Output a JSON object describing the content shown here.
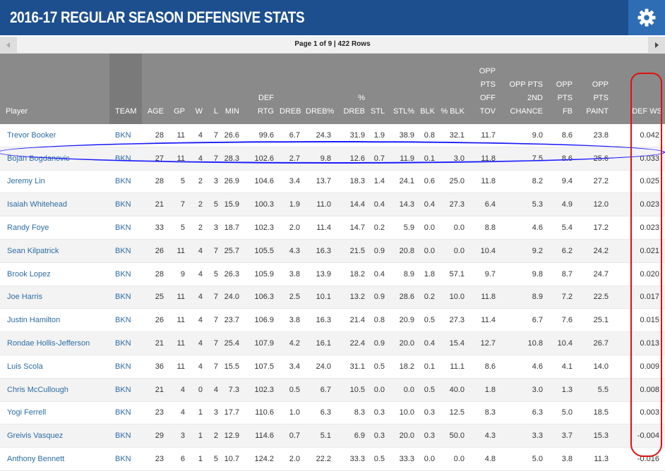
{
  "title": "2016-17 REGULAR SEASON DEFENSIVE STATS",
  "settings_icon": "gear-icon",
  "pager": {
    "info": "Page 1 of 9 | 422 Rows",
    "prev_icon": "triangle-left-icon",
    "next_icon": "triangle-right-icon"
  },
  "columns": [
    {
      "key": "player",
      "label": "Player"
    },
    {
      "key": "team",
      "label": "TEAM"
    },
    {
      "key": "age",
      "label": "AGE"
    },
    {
      "key": "gp",
      "label": "GP"
    },
    {
      "key": "w",
      "label": "W"
    },
    {
      "key": "l",
      "label": "L"
    },
    {
      "key": "min",
      "label": "MIN"
    },
    {
      "key": "def_rtg",
      "label": "DEF RTG"
    },
    {
      "key": "dreb",
      "label": "DREB"
    },
    {
      "key": "dreb_pct",
      "label": "DREB%"
    },
    {
      "key": "pct_dreb",
      "label": "% DREB"
    },
    {
      "key": "stl",
      "label": "STL"
    },
    {
      "key": "stl_pct",
      "label": "STL%"
    },
    {
      "key": "blk",
      "label": "BLK"
    },
    {
      "key": "pct_blk",
      "label": "% BLK"
    },
    {
      "key": "opp_pts_off_tov",
      "label": "OPP PTS OFF TOV"
    },
    {
      "key": "opp_pts_2nd_chance",
      "label": "OPP PTS 2ND CHANCE"
    },
    {
      "key": "opp_pts_fb",
      "label": "OPP PTS FB"
    },
    {
      "key": "opp_pts_paint",
      "label": "OPP PTS PAINT"
    },
    {
      "key": "def_ws",
      "label": "DEF WS"
    }
  ],
  "rows": [
    [
      "Trevor Booker",
      "BKN",
      "28",
      "11",
      "4",
      "7",
      "26.6",
      "99.6",
      "6.7",
      "24.3",
      "31.9",
      "1.9",
      "38.9",
      "0.8",
      "32.1",
      "11.7",
      "9.0",
      "8.6",
      "23.8",
      "0.042"
    ],
    [
      "Bojan Bogdanovic",
      "BKN",
      "27",
      "11",
      "4",
      "7",
      "28.3",
      "102.6",
      "2.7",
      "9.8",
      "12.6",
      "0.7",
      "11.9",
      "0.1",
      "3.0",
      "11.8",
      "7.5",
      "8.6",
      "25.6",
      "0.033"
    ],
    [
      "Jeremy Lin",
      "BKN",
      "28",
      "5",
      "2",
      "3",
      "26.9",
      "104.6",
      "3.4",
      "13.7",
      "18.3",
      "1.4",
      "24.1",
      "0.6",
      "25.0",
      "11.8",
      "8.2",
      "9.4",
      "27.2",
      "0.025"
    ],
    [
      "Isaiah Whitehead",
      "BKN",
      "21",
      "7",
      "2",
      "5",
      "15.9",
      "100.3",
      "1.9",
      "11.0",
      "14.4",
      "0.4",
      "14.3",
      "0.4",
      "27.3",
      "6.4",
      "5.3",
      "4.9",
      "12.0",
      "0.023"
    ],
    [
      "Randy Foye",
      "BKN",
      "33",
      "5",
      "2",
      "3",
      "18.7",
      "102.3",
      "2.0",
      "11.4",
      "14.7",
      "0.2",
      "5.9",
      "0.0",
      "0.0",
      "8.8",
      "4.6",
      "5.4",
      "17.2",
      "0.023"
    ],
    [
      "Sean Kilpatrick",
      "BKN",
      "26",
      "11",
      "4",
      "7",
      "25.7",
      "105.5",
      "4.3",
      "16.3",
      "21.5",
      "0.9",
      "20.8",
      "0.0",
      "0.0",
      "10.4",
      "9.2",
      "6.2",
      "24.2",
      "0.021"
    ],
    [
      "Brook Lopez",
      "BKN",
      "28",
      "9",
      "4",
      "5",
      "26.3",
      "105.9",
      "3.8",
      "13.9",
      "18.2",
      "0.4",
      "8.9",
      "1.8",
      "57.1",
      "9.7",
      "9.8",
      "8.7",
      "24.7",
      "0.020"
    ],
    [
      "Joe Harris",
      "BKN",
      "25",
      "11",
      "4",
      "7",
      "24.0",
      "106.3",
      "2.5",
      "10.1",
      "13.2",
      "0.9",
      "28.6",
      "0.2",
      "10.0",
      "11.8",
      "8.9",
      "7.2",
      "22.5",
      "0.017"
    ],
    [
      "Justin Hamilton",
      "BKN",
      "26",
      "11",
      "4",
      "7",
      "23.7",
      "106.9",
      "3.8",
      "16.3",
      "21.4",
      "0.8",
      "20.9",
      "0.5",
      "27.3",
      "11.4",
      "6.7",
      "7.6",
      "25.1",
      "0.015"
    ],
    [
      "Rondae Hollis-Jefferson",
      "BKN",
      "21",
      "11",
      "4",
      "7",
      "25.4",
      "107.9",
      "4.2",
      "16.1",
      "22.4",
      "0.9",
      "20.0",
      "0.4",
      "15.4",
      "12.7",
      "10.8",
      "10.4",
      "26.7",
      "0.013"
    ],
    [
      "Luis Scola",
      "BKN",
      "36",
      "11",
      "4",
      "7",
      "15.5",
      "107.5",
      "3.4",
      "24.0",
      "31.1",
      "0.5",
      "18.2",
      "0.1",
      "11.1",
      "8.6",
      "4.6",
      "4.1",
      "14.0",
      "0.009"
    ],
    [
      "Chris McCullough",
      "BKN",
      "21",
      "4",
      "0",
      "4",
      "7.3",
      "102.3",
      "0.5",
      "6.7",
      "10.5",
      "0.0",
      "0.0",
      "0.5",
      "40.0",
      "1.8",
      "3.0",
      "1.3",
      "5.5",
      "0.008"
    ],
    [
      "Yogi Ferrell",
      "BKN",
      "23",
      "4",
      "1",
      "3",
      "17.7",
      "110.6",
      "1.0",
      "6.3",
      "8.3",
      "0.3",
      "10.0",
      "0.3",
      "12.5",
      "8.3",
      "6.3",
      "5.0",
      "18.5",
      "0.003"
    ],
    [
      "Greivis Vasquez",
      "BKN",
      "29",
      "3",
      "1",
      "2",
      "12.9",
      "114.6",
      "0.7",
      "5.1",
      "6.9",
      "0.3",
      "20.0",
      "0.3",
      "50.0",
      "4.3",
      "3.3",
      "3.7",
      "15.3",
      "-0.004"
    ],
    [
      "Anthony Bennett",
      "BKN",
      "23",
      "6",
      "1",
      "5",
      "10.7",
      "124.2",
      "2.0",
      "22.2",
      "33.3",
      "0.5",
      "33.3",
      "0.0",
      "0.0",
      "4.8",
      "5.0",
      "3.8",
      "11.3",
      "-0.016"
    ]
  ],
  "colors": {
    "title_bar": "#1d4f8f",
    "gear_bg": "#2e6db4",
    "header": "#8a8a8a",
    "team_header": "#7a7a7a",
    "link": "#2e6da4",
    "annotation_row": "#1a1aff",
    "annotation_column": "#e01010"
  }
}
